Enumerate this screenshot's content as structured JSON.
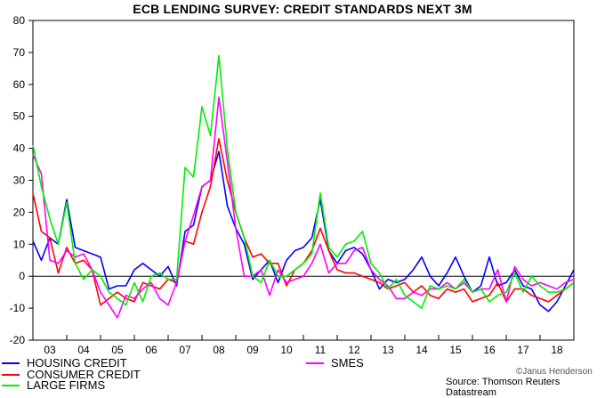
{
  "chart_data": {
    "type": "line",
    "title": "ECB LENDING SURVEY: CREDIT STANDARDS NEXT 3M",
    "xlabel": "",
    "ylabel": "",
    "ylim": [
      -20,
      80
    ],
    "yticks": [
      80,
      70,
      60,
      50,
      40,
      30,
      20,
      10,
      0,
      -10,
      -20
    ],
    "xticks": [
      "03",
      "04",
      "05",
      "06",
      "07",
      "08",
      "09",
      "10",
      "11",
      "12",
      "13",
      "14",
      "15",
      "16",
      "17",
      "18"
    ],
    "x_start_year": 2003,
    "grid": false,
    "legend_position": "bottom",
    "x": [
      2003.0,
      2003.25,
      2003.5,
      2003.75,
      2004.0,
      2004.25,
      2004.5,
      2004.75,
      2005.0,
      2005.25,
      2005.5,
      2005.75,
      2006.0,
      2006.25,
      2006.5,
      2006.75,
      2007.0,
      2007.25,
      2007.5,
      2007.75,
      2008.0,
      2008.25,
      2008.5,
      2008.75,
      2009.0,
      2009.25,
      2009.5,
      2009.75,
      2010.0,
      2010.25,
      2010.5,
      2010.75,
      2011.0,
      2011.25,
      2011.5,
      2011.75,
      2012.0,
      2012.25,
      2012.5,
      2012.75,
      2013.0,
      2013.25,
      2013.5,
      2013.75,
      2014.0,
      2014.25,
      2014.5,
      2014.75,
      2015.0,
      2015.25,
      2015.5,
      2015.75,
      2016.0,
      2016.25,
      2016.5,
      2016.75,
      2017.0,
      2017.25,
      2017.5,
      2017.75,
      2018.0,
      2018.25,
      2018.5,
      2018.75,
      2019.0
    ],
    "series": [
      {
        "name": "HOUSING CREDIT",
        "color": "#0000ff",
        "values": [
          11,
          5,
          12,
          10,
          24,
          9,
          8,
          7,
          6,
          -4,
          -3,
          -3,
          2,
          4,
          2,
          0,
          3,
          -3,
          14,
          16,
          28,
          30,
          39,
          22,
          15,
          10,
          -1,
          2,
          5,
          -2,
          5,
          8,
          9,
          12,
          24,
          8,
          4,
          8,
          9,
          7,
          2,
          -4,
          -1,
          -2,
          -1,
          2,
          6,
          0,
          -3,
          1,
          6,
          0,
          -5,
          -3,
          6,
          -3,
          -2,
          2,
          -3,
          -4,
          -9,
          -11,
          -8,
          -3,
          2
        ]
      },
      {
        "name": "CONSUMER CREDIT",
        "color": "#ff0000",
        "values": [
          26,
          14,
          12,
          1,
          9,
          4,
          5,
          2,
          -9,
          -7,
          -5,
          -7,
          -8,
          -2,
          -3,
          -4,
          -1,
          -2,
          11,
          10,
          20,
          28,
          43,
          30,
          20,
          12,
          6,
          7,
          4,
          4,
          -3,
          2,
          4,
          8,
          15,
          8,
          2,
          1,
          1,
          0,
          -1,
          -2,
          -4,
          -3,
          -2,
          -5,
          -3,
          -6,
          -7,
          -4,
          -5,
          -4,
          -8,
          -7,
          -6,
          -2,
          -8,
          -4,
          -4,
          -6,
          -7,
          -8,
          -6,
          -4,
          -2
        ]
      },
      {
        "name": "SMES",
        "color": "#ff00ff",
        "values": [
          38,
          32,
          5,
          4,
          8,
          6,
          7,
          2,
          -5,
          -9,
          -13,
          -6,
          -7,
          -4,
          -2,
          -7,
          -9,
          -2,
          11,
          19,
          28,
          30,
          56,
          36,
          15,
          0,
          0,
          2,
          -6,
          2,
          -2,
          -1,
          0,
          4,
          10,
          1,
          4,
          4,
          8,
          9,
          2,
          -1,
          -3,
          -7,
          -7,
          -5,
          -6,
          -4,
          -4,
          -2,
          -4,
          -2,
          -5,
          -4,
          -4,
          2,
          -8,
          3,
          -1,
          -3,
          -2,
          -3,
          -4,
          -2,
          -1
        ]
      },
      {
        "name": "LARGE FIRMS",
        "color": "#00ee00",
        "values": [
          41,
          28,
          18,
          10,
          23,
          4,
          -1,
          2,
          0,
          -5,
          -7,
          -9,
          -2,
          -8,
          0,
          1,
          -1,
          -1,
          34,
          31,
          53,
          44,
          69,
          40,
          20,
          12,
          0,
          -2,
          5,
          0,
          0,
          2,
          4,
          7,
          26,
          9,
          6,
          10,
          11,
          14,
          4,
          1,
          -4,
          -1,
          -6,
          -8,
          -10,
          -3,
          -4,
          -3,
          -4,
          -1,
          -5,
          -4,
          -8,
          -6,
          -5,
          1,
          -5,
          0,
          -3,
          -5,
          -5,
          -4,
          -2
        ]
      }
    ]
  },
  "legend": {
    "housing": "HOUSING CREDIT",
    "consumer": "CONSUMER CREDIT",
    "large": "LARGE FIRMS",
    "smes": "SMES"
  },
  "source": "Source: Thomson Reuters Datastream",
  "watermark": "©Janus Henderson"
}
